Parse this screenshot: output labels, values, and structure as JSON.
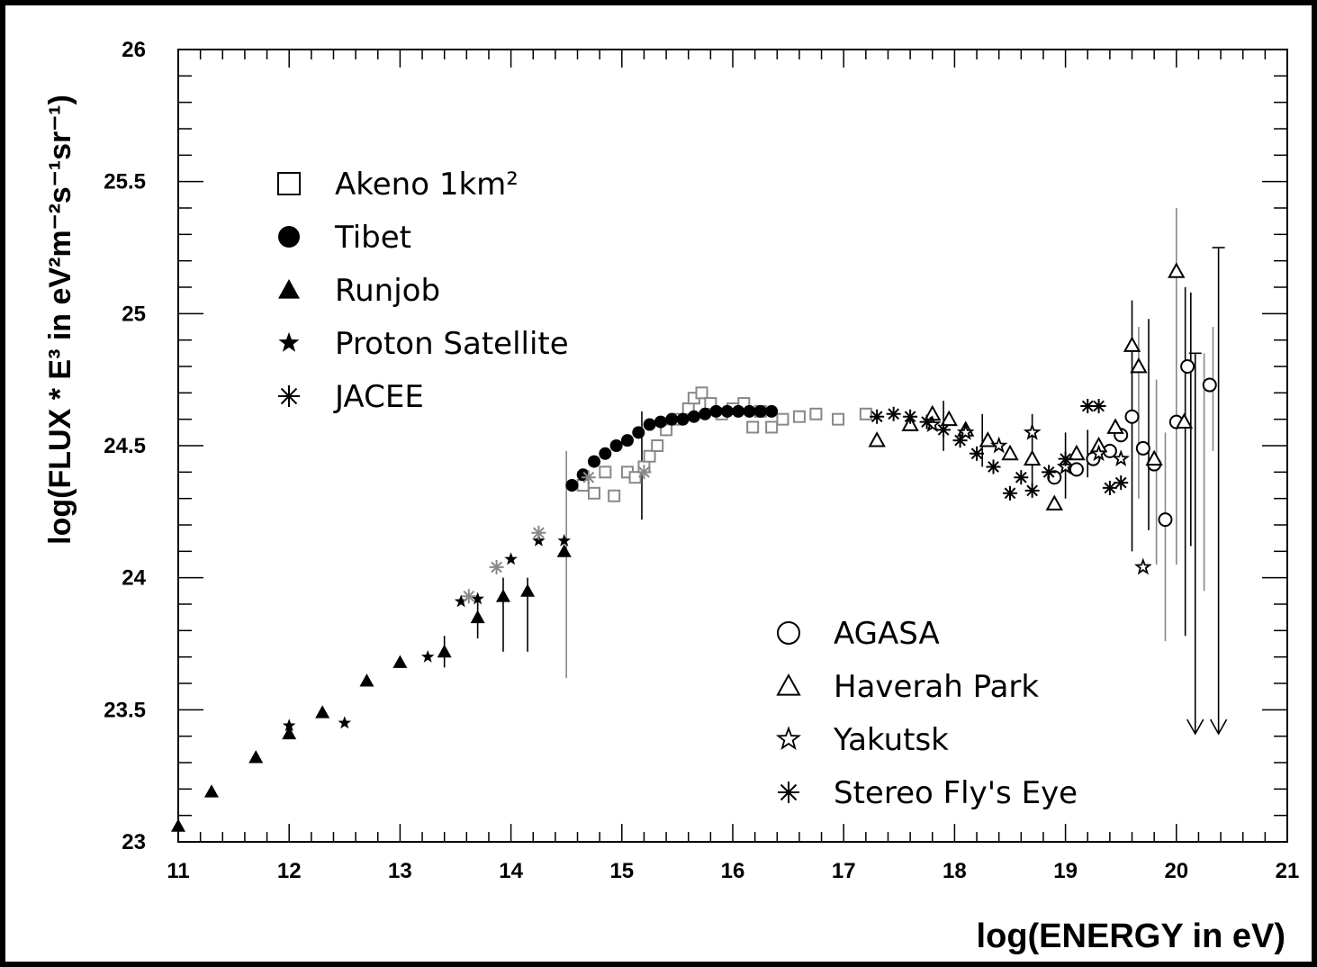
{
  "chart_data": {
    "type": "scatter",
    "title": "",
    "xlabel": "log(ENERGY in eV)",
    "ylabel": "log(FLUX * E³ in eV²m⁻²s⁻¹sr⁻¹)",
    "xlim": [
      11,
      21
    ],
    "ylim": [
      23,
      26
    ],
    "x_ticks": [
      "11",
      "12",
      "13",
      "14",
      "15",
      "16",
      "17",
      "18",
      "19",
      "20",
      "21"
    ],
    "y_ticks": [
      "23",
      "23.5",
      "24",
      "24.5",
      "25",
      "25.5",
      "26"
    ],
    "grid": false,
    "legends": [
      {
        "placement": "upper-left",
        "entries": [
          "Akeno 1km²",
          "Tibet",
          "Runjob",
          "Proton Satellite",
          "JACEE"
        ]
      },
      {
        "placement": "lower-right",
        "entries": [
          "AGASA",
          "Haverah Park",
          "Yakutsk",
          "Stereo Fly's Eye"
        ]
      }
    ],
    "series": [
      {
        "name": "Akeno 1km²",
        "marker": "open-square",
        "color": "#888888",
        "points": [
          [
            14.65,
            24.35
          ],
          [
            14.75,
            24.32
          ],
          [
            14.85,
            24.4
          ],
          [
            14.93,
            24.31
          ],
          [
            15.05,
            24.4
          ],
          [
            15.12,
            24.38
          ],
          [
            15.2,
            24.42
          ],
          [
            15.25,
            24.46
          ],
          [
            15.32,
            24.5
          ],
          [
            15.4,
            24.56
          ],
          [
            15.5,
            24.6
          ],
          [
            15.6,
            24.64
          ],
          [
            15.65,
            24.68
          ],
          [
            15.72,
            24.7
          ],
          [
            15.8,
            24.66
          ],
          [
            15.9,
            24.62
          ],
          [
            16.0,
            24.64
          ],
          [
            16.1,
            24.66
          ],
          [
            16.18,
            24.57
          ],
          [
            16.25,
            24.63
          ],
          [
            16.35,
            24.57
          ],
          [
            16.45,
            24.6
          ],
          [
            16.6,
            24.61
          ],
          [
            16.75,
            24.62
          ],
          [
            16.95,
            24.6
          ],
          [
            17.2,
            24.62
          ]
        ]
      },
      {
        "name": "Tibet",
        "marker": "filled-circle",
        "color": "#000000",
        "points": [
          [
            14.55,
            24.35
          ],
          [
            14.65,
            24.39
          ],
          [
            14.75,
            24.44
          ],
          [
            14.85,
            24.47
          ],
          [
            14.95,
            24.5
          ],
          [
            15.05,
            24.52
          ],
          [
            15.15,
            24.55
          ],
          [
            15.25,
            24.58
          ],
          [
            15.35,
            24.59
          ],
          [
            15.45,
            24.6
          ],
          [
            15.55,
            24.6
          ],
          [
            15.65,
            24.61
          ],
          [
            15.75,
            24.62
          ],
          [
            15.85,
            24.63
          ],
          [
            15.95,
            24.63
          ],
          [
            16.05,
            24.63
          ],
          [
            16.15,
            24.63
          ],
          [
            16.25,
            24.63
          ],
          [
            16.35,
            24.63
          ]
        ]
      },
      {
        "name": "Runjob",
        "marker": "filled-triangle",
        "color": "#000000",
        "points": [
          [
            11.0,
            23.06
          ],
          [
            11.3,
            23.19
          ],
          [
            11.7,
            23.32
          ],
          [
            12.0,
            23.41
          ],
          [
            12.3,
            23.49
          ],
          [
            12.7,
            23.61
          ],
          [
            13.0,
            23.68
          ],
          [
            13.4,
            23.72
          ],
          [
            13.7,
            23.85
          ],
          [
            13.93,
            23.93
          ],
          [
            14.15,
            23.95
          ],
          [
            14.48,
            24.1
          ]
        ]
      },
      {
        "name": "Proton Satellite",
        "marker": "filled-star",
        "color": "#000000",
        "points": [
          [
            12.0,
            23.44
          ],
          [
            12.5,
            23.45
          ],
          [
            13.25,
            23.7
          ],
          [
            13.55,
            23.91
          ],
          [
            13.7,
            23.92
          ],
          [
            14.0,
            24.07
          ],
          [
            14.25,
            24.14
          ],
          [
            14.48,
            24.14
          ]
        ]
      },
      {
        "name": "JACEE",
        "marker": "asterisk",
        "color": "#888888",
        "points": [
          [
            13.62,
            23.93
          ],
          [
            13.87,
            24.04
          ],
          [
            14.25,
            24.17
          ],
          [
            14.7,
            24.38
          ],
          [
            15.2,
            24.4
          ]
        ]
      },
      {
        "name": "AGASA",
        "marker": "open-circle",
        "color": "#000000",
        "points": [
          [
            18.9,
            24.38
          ],
          [
            19.1,
            24.41
          ],
          [
            19.25,
            24.45
          ],
          [
            19.4,
            24.48
          ],
          [
            19.5,
            24.54
          ],
          [
            19.6,
            24.61
          ],
          [
            19.7,
            24.49
          ],
          [
            19.8,
            24.43
          ],
          [
            19.9,
            24.22
          ],
          [
            20.0,
            24.59
          ],
          [
            20.1,
            24.8
          ],
          [
            20.3,
            24.73
          ]
        ]
      },
      {
        "name": "Haverah Park",
        "marker": "open-triangle",
        "color": "#000000",
        "points": [
          [
            17.3,
            24.52
          ],
          [
            17.6,
            24.58
          ],
          [
            17.8,
            24.62
          ],
          [
            17.95,
            24.6
          ],
          [
            18.1,
            24.56
          ],
          [
            18.3,
            24.52
          ],
          [
            18.5,
            24.47
          ],
          [
            18.7,
            24.45
          ],
          [
            18.9,
            24.28
          ],
          [
            19.1,
            24.47
          ],
          [
            19.3,
            24.5
          ],
          [
            19.45,
            24.57
          ],
          [
            19.6,
            24.88
          ],
          [
            19.66,
            24.8
          ],
          [
            19.8,
            24.45
          ],
          [
            20.0,
            25.16
          ],
          [
            20.07,
            24.59
          ]
        ]
      },
      {
        "name": "Yakutsk",
        "marker": "open-star",
        "color": "#000000",
        "points": [
          [
            17.8,
            24.58
          ],
          [
            18.1,
            24.55
          ],
          [
            18.4,
            24.5
          ],
          [
            18.7,
            24.55
          ],
          [
            19.0,
            24.42
          ],
          [
            19.3,
            24.47
          ],
          [
            19.5,
            24.45
          ],
          [
            19.7,
            24.04
          ]
        ]
      },
      {
        "name": "Stereo Fly's Eye",
        "marker": "asterisk",
        "color": "#000000",
        "points": [
          [
            17.3,
            24.61
          ],
          [
            17.45,
            24.62
          ],
          [
            17.6,
            24.61
          ],
          [
            17.75,
            24.59
          ],
          [
            17.9,
            24.56
          ],
          [
            18.05,
            24.52
          ],
          [
            18.2,
            24.47
          ],
          [
            18.35,
            24.42
          ],
          [
            18.5,
            24.32
          ],
          [
            18.6,
            24.38
          ],
          [
            18.7,
            24.33
          ],
          [
            18.85,
            24.4
          ],
          [
            19.0,
            24.45
          ],
          [
            19.2,
            24.65
          ],
          [
            19.3,
            24.65
          ],
          [
            19.4,
            24.34
          ],
          [
            19.5,
            24.36
          ]
        ]
      }
    ],
    "upper_limits": [
      [
        20.17,
        24.85
      ],
      [
        20.38,
        25.25
      ]
    ]
  }
}
